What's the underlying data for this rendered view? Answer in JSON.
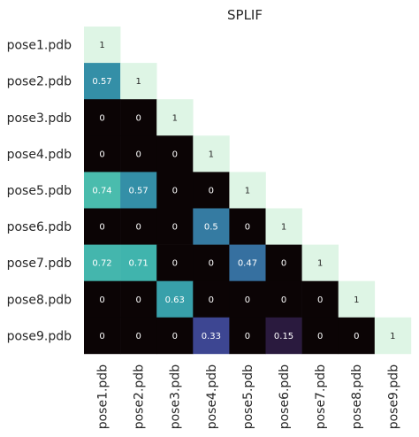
{
  "chart_data": {
    "type": "heatmap",
    "title": "SPLIF",
    "row_labels": [
      "pose1.pdb",
      "pose2.pdb",
      "pose3.pdb",
      "pose4.pdb",
      "pose5.pdb",
      "pose6.pdb",
      "pose7.pdb",
      "pose8.pdb",
      "pose9.pdb"
    ],
    "col_labels": [
      "pose1.pdb",
      "pose2.pdb",
      "pose3.pdb",
      "pose4.pdb",
      "pose5.pdb",
      "pose6.pdb",
      "pose7.pdb",
      "pose8.pdb",
      "pose9.pdb"
    ],
    "values": [
      [
        1
      ],
      [
        0.57,
        1
      ],
      [
        0,
        0,
        1
      ],
      [
        0,
        0,
        0,
        1
      ],
      [
        0.74,
        0.57,
        0,
        0,
        1
      ],
      [
        0,
        0,
        0,
        0.5,
        0,
        1
      ],
      [
        0.72,
        0.71,
        0,
        0,
        0.47,
        0,
        1
      ],
      [
        0,
        0,
        0.63,
        0,
        0,
        0,
        0,
        1
      ],
      [
        0,
        0,
        0,
        0.33,
        0,
        0.15,
        0,
        0,
        1
      ]
    ],
    "mask": "upper-triangle",
    "colormap": "mako",
    "vmin": 0,
    "vmax": 1,
    "colors": {
      "0": "#0b0405",
      "0.15": "#2a1a3e",
      "0.33": "#3d4692",
      "0.47": "#3670a0",
      "0.5": "#357ba2",
      "0.57": "#348fa7",
      "0.63": "#38a0aa",
      "0.71": "#40b4ad",
      "0.72": "#44b6ad",
      "0.74": "#4abcad",
      "1": "#def5e5"
    }
  }
}
